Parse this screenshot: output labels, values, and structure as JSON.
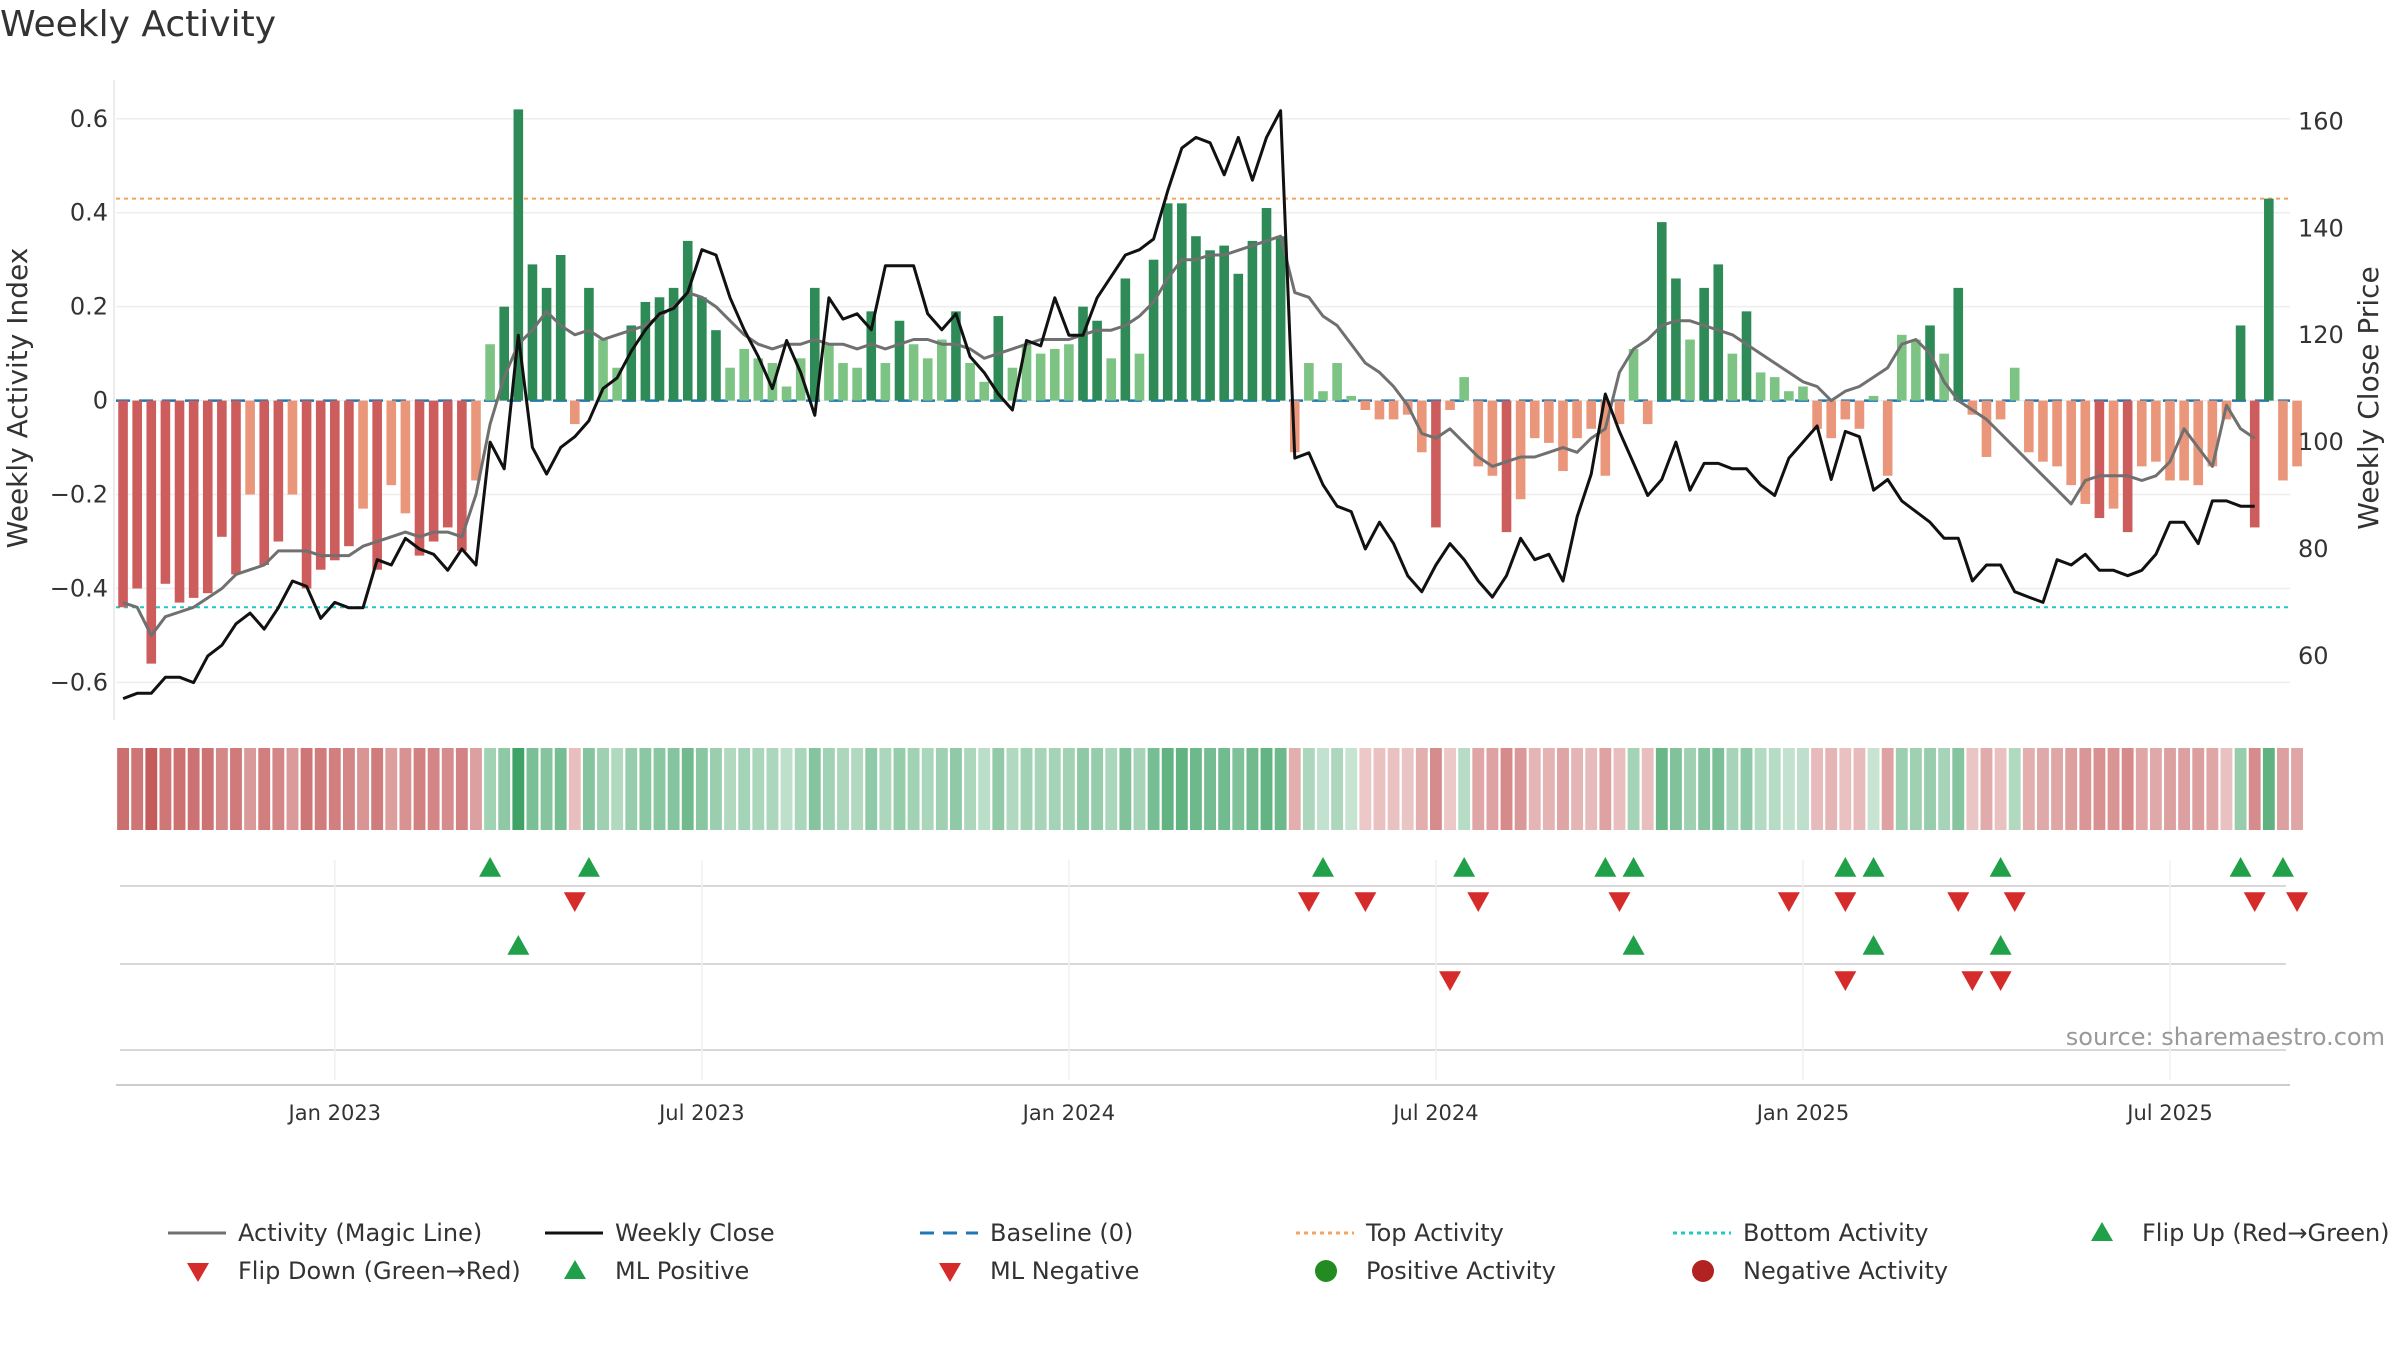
{
  "chart_data": {
    "type": "bar",
    "title": "Weekly Activity",
    "ylabel": "Weekly Activity Index",
    "y2label": "Weekly Close Price",
    "ylim": [
      -0.68,
      0.64
    ],
    "y2lim": [
      48,
      164
    ],
    "yticks": [
      {
        "value": 0.6,
        "label": "0.6"
      },
      {
        "value": 0.4,
        "label": "0.4"
      },
      {
        "value": 0.2,
        "label": "0.2"
      },
      {
        "value": 0.0,
        "label": "0"
      },
      {
        "value": -0.2,
        "label": "−0.2"
      },
      {
        "value": -0.4,
        "label": "−0.4"
      },
      {
        "value": -0.6,
        "label": "−0.6"
      }
    ],
    "y2ticks": [
      {
        "value": 160,
        "label": "160"
      },
      {
        "value": 140,
        "label": "140"
      },
      {
        "value": 120,
        "label": "120"
      },
      {
        "value": 100,
        "label": "100"
      },
      {
        "value": 80,
        "label": "80"
      },
      {
        "value": 60,
        "label": "60"
      }
    ],
    "x_weeks": 154,
    "xticks": [
      {
        "week": 15,
        "label": "Jan 2023"
      },
      {
        "week": 41,
        "label": "Jul 2023"
      },
      {
        "week": 67,
        "label": "Jan 2024"
      },
      {
        "week": 93,
        "label": "Jul 2024"
      },
      {
        "week": 119,
        "label": "Jan 2025"
      },
      {
        "week": 145,
        "label": "Jul 2025"
      }
    ],
    "top_activity": 0.43,
    "bottom_activity": -0.44,
    "baseline": 0,
    "activity": [
      -0.44,
      -0.4,
      -0.56,
      -0.39,
      -0.43,
      -0.42,
      -0.41,
      -0.29,
      -0.37,
      -0.2,
      -0.35,
      -0.3,
      -0.2,
      -0.4,
      -0.36,
      -0.34,
      -0.31,
      -0.23,
      -0.36,
      -0.18,
      -0.24,
      -0.33,
      -0.3,
      -0.27,
      -0.32,
      -0.17,
      0.12,
      0.2,
      0.62,
      0.29,
      0.24,
      0.31,
      -0.05,
      0.24,
      0.13,
      0.07,
      0.16,
      0.21,
      0.22,
      0.24,
      0.34,
      0.22,
      0.15,
      0.07,
      0.11,
      0.09,
      0.08,
      0.03,
      0.09,
      0.24,
      0.12,
      0.08,
      0.07,
      0.19,
      0.08,
      0.17,
      0.12,
      0.09,
      0.13,
      0.19,
      0.08,
      0.04,
      0.18,
      0.07,
      0.12,
      0.1,
      0.11,
      0.12,
      0.2,
      0.17,
      0.09,
      0.26,
      0.1,
      0.3,
      0.42,
      0.42,
      0.35,
      0.32,
      0.33,
      0.27,
      0.34,
      0.41,
      0.35,
      -0.11,
      0.08,
      0.02,
      0.08,
      0.01,
      -0.02,
      -0.04,
      -0.04,
      -0.03,
      -0.11,
      -0.27,
      -0.02,
      0.05,
      -0.14,
      -0.16,
      -0.28,
      -0.21,
      -0.08,
      -0.09,
      -0.15,
      -0.08,
      -0.06,
      -0.16,
      -0.05,
      0.11,
      -0.05,
      0.38,
      0.26,
      0.13,
      0.24,
      0.29,
      0.1,
      0.19,
      0.06,
      0.05,
      0.02,
      0.03,
      -0.06,
      -0.08,
      -0.04,
      -0.06,
      0.01,
      -0.16,
      0.14,
      0.13,
      0.16,
      0.1,
      0.24,
      -0.03,
      -0.12,
      -0.04,
      0.07,
      -0.11,
      -0.13,
      -0.14,
      -0.18,
      -0.22,
      -0.25,
      -0.23,
      -0.28,
      -0.14,
      -0.13,
      -0.17,
      -0.17,
      -0.18,
      -0.14,
      -0.04,
      0.16,
      -0.27,
      0.43,
      -0.17,
      -0.14
    ],
    "magic_line": [
      -0.43,
      -0.44,
      -0.5,
      -0.46,
      -0.45,
      -0.44,
      -0.42,
      -0.4,
      -0.37,
      -0.36,
      -0.35,
      -0.32,
      -0.32,
      -0.32,
      -0.33,
      -0.33,
      -0.33,
      -0.31,
      -0.3,
      -0.29,
      -0.28,
      -0.29,
      -0.28,
      -0.28,
      -0.29,
      -0.2,
      -0.05,
      0.05,
      0.12,
      0.15,
      0.19,
      0.16,
      0.14,
      0.15,
      0.13,
      0.14,
      0.15,
      0.16,
      0.18,
      0.2,
      0.23,
      0.22,
      0.2,
      0.17,
      0.14,
      0.12,
      0.11,
      0.12,
      0.12,
      0.13,
      0.12,
      0.12,
      0.11,
      0.12,
      0.11,
      0.12,
      0.13,
      0.13,
      0.12,
      0.12,
      0.11,
      0.09,
      0.1,
      0.11,
      0.12,
      0.13,
      0.13,
      0.13,
      0.14,
      0.15,
      0.15,
      0.16,
      0.18,
      0.21,
      0.26,
      0.3,
      0.3,
      0.31,
      0.31,
      0.32,
      0.33,
      0.34,
      0.35,
      0.23,
      0.22,
      0.18,
      0.16,
      0.12,
      0.08,
      0.06,
      0.03,
      -0.01,
      -0.07,
      -0.08,
      -0.06,
      -0.09,
      -0.12,
      -0.14,
      -0.13,
      -0.12,
      -0.12,
      -0.11,
      -0.1,
      -0.11,
      -0.08,
      -0.06,
      0.06,
      0.11,
      0.13,
      0.16,
      0.17,
      0.17,
      0.16,
      0.15,
      0.14,
      0.12,
      0.1,
      0.08,
      0.06,
      0.04,
      0.03,
      0.0,
      0.02,
      0.03,
      0.05,
      0.07,
      0.12,
      0.13,
      0.1,
      0.04,
      0.0,
      -0.02,
      -0.04,
      -0.07,
      -0.1,
      -0.13,
      -0.16,
      -0.19,
      -0.22,
      -0.17,
      -0.16,
      -0.16,
      -0.16,
      -0.17,
      -0.16,
      -0.13,
      -0.06,
      -0.1,
      -0.14,
      -0.01,
      -0.06,
      -0.08
    ],
    "weekly_close": [
      52,
      53,
      53,
      56,
      56,
      55,
      60,
      62,
      66,
      68,
      65,
      69,
      74,
      73,
      67,
      70,
      69,
      69,
      78,
      77,
      82,
      80,
      79,
      76,
      80,
      77,
      100,
      95,
      120,
      99,
      94,
      99,
      101,
      104,
      110,
      112,
      117,
      121,
      124,
      125,
      128,
      136,
      135,
      127,
      121,
      116,
      110,
      119,
      113,
      105,
      127,
      123,
      124,
      121,
      133,
      133,
      133,
      124,
      121,
      124,
      116,
      113,
      109,
      106,
      119,
      118,
      127,
      120,
      120,
      127,
      131,
      135,
      136,
      138,
      147,
      155,
      157,
      156,
      150,
      157,
      149,
      157,
      162,
      97,
      98,
      92,
      88,
      87,
      80,
      85,
      81,
      75,
      72,
      77,
      81,
      78,
      74,
      71,
      75,
      82,
      78,
      79,
      74,
      86,
      94,
      109,
      102,
      96,
      90,
      93,
      100,
      91,
      96,
      96,
      95,
      95,
      92,
      90,
      97,
      100,
      103,
      93,
      102,
      101,
      91,
      93,
      89,
      87,
      85,
      82,
      82,
      74,
      77,
      77,
      72,
      71,
      70,
      78,
      77,
      79,
      76,
      76,
      75,
      76,
      79,
      85,
      85,
      81,
      89,
      89,
      88,
      88
    ],
    "flip_up_weeks": [
      26,
      33,
      85,
      95,
      105,
      107,
      122,
      124,
      133,
      150,
      153
    ],
    "flip_down_weeks": [
      32,
      84,
      88,
      96,
      106,
      118,
      122,
      130,
      134,
      151,
      154
    ],
    "ml_positive_weeks": [
      28,
      107,
      124,
      133
    ],
    "ml_negative_weeks": [
      94,
      122,
      131,
      133
    ],
    "legend": [
      {
        "label": "Activity (Magic Line)",
        "kind": "line-gray"
      },
      {
        "label": "Weekly Close",
        "kind": "line-black"
      },
      {
        "label": "Baseline (0)",
        "kind": "dash-blue"
      },
      {
        "label": "Top Activity",
        "kind": "dot-orange"
      },
      {
        "label": "Bottom Activity",
        "kind": "dot-cyan"
      },
      {
        "label": "Flip Up (Red→Green)",
        "kind": "tri-up"
      },
      {
        "label": "Flip Down (Green→Red)",
        "kind": "tri-down"
      },
      {
        "label": "ML Positive",
        "kind": "tri-up"
      },
      {
        "label": "ML Negative",
        "kind": "tri-down"
      },
      {
        "label": "Positive Activity",
        "kind": "dot-green"
      },
      {
        "label": "Negative Activity",
        "kind": "dot-red"
      }
    ],
    "source": "source: sharemaestro.com"
  },
  "colors": {
    "green": "#2e8b57",
    "light_green": "#7dc383",
    "red": "#cd5c5c",
    "salmon": "#e9967a",
    "black": "#111111",
    "magic": "#707070",
    "baseline": "#1f77b4",
    "top": "#f4a460",
    "bottom": "#20c7c7",
    "marker_green": "#21a04a",
    "marker_red": "#d62b2b"
  }
}
